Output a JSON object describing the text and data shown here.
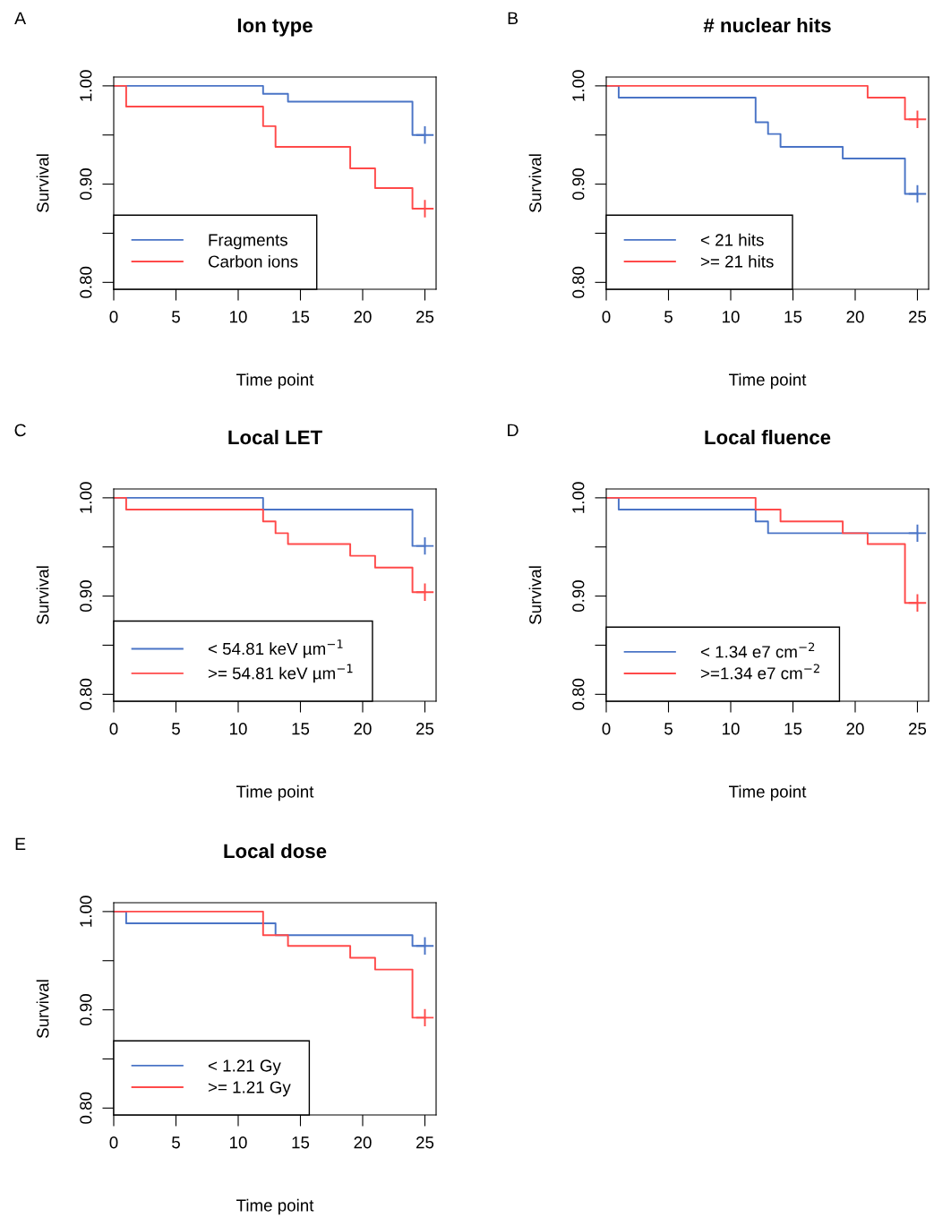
{
  "chart_data": [
    {
      "type": "step",
      "title": "Ion type",
      "xlabel": "Time point",
      "ylabel": "Survival",
      "annotations": [
        "A"
      ],
      "legend": "bottom left",
      "xlim": [
        0,
        25.9
      ],
      "ylim": [
        0.793,
        1.009
      ],
      "xticks": [
        0,
        5,
        10,
        15,
        20,
        25
      ],
      "yticks": [
        {
          "value": 0.8,
          "label": "0.80"
        },
        {
          "value": 0.85,
          "label": null
        },
        {
          "value": 0.9,
          "label": "0.90"
        },
        {
          "value": 0.95,
          "label": null
        },
        {
          "value": 1.0,
          "label": "1.00"
        }
      ],
      "series": [
        {
          "name": "Fragments",
          "color": "#4a74c6",
          "x": [
            0,
            12,
            14,
            24,
            25
          ],
          "values": [
            1.0,
            0.992,
            0.984,
            0.95,
            0.95
          ]
        },
        {
          "name": "Carbon ions",
          "color": "#ff4a4a",
          "x": [
            0,
            1,
            12,
            13,
            19,
            21,
            24,
            25
          ],
          "values": [
            1.0,
            0.979,
            0.959,
            0.938,
            0.916,
            0.896,
            0.875,
            0.875
          ]
        },
        {
          "type": "scatter",
          "marker": "cross",
          "color": "#4a74c6",
          "x": [
            25
          ],
          "values": [
            0.95
          ]
        },
        {
          "type": "scatter",
          "marker": "cross",
          "color": "#ff4a4a",
          "x": [
            25
          ],
          "values": [
            0.875
          ]
        }
      ]
    },
    {
      "type": "step",
      "title": "# nuclear hits",
      "xlabel": "Time point",
      "ylabel": "Survival",
      "annotations": [
        "B"
      ],
      "legend": "bottom left",
      "xlim": [
        0,
        25.9
      ],
      "ylim": [
        0.793,
        1.009
      ],
      "xticks": [
        0,
        5,
        10,
        15,
        20,
        25
      ],
      "yticks": [
        {
          "value": 0.8,
          "label": "0.80"
        },
        {
          "value": 0.85,
          "label": null
        },
        {
          "value": 0.9,
          "label": "0.90"
        },
        {
          "value": 0.95,
          "label": null
        },
        {
          "value": 1.0,
          "label": "1.00"
        }
      ],
      "series": [
        {
          "name": "< 21 hits",
          "color": "#4a74c6",
          "x": [
            0,
            1,
            12,
            13,
            14,
            19,
            24,
            25
          ],
          "values": [
            1.0,
            0.988,
            0.963,
            0.951,
            0.938,
            0.926,
            0.89,
            0.89
          ]
        },
        {
          "name": ">= 21 hits",
          "color": "#ff4a4a",
          "x": [
            0,
            21,
            24,
            25
          ],
          "values": [
            1.0,
            0.988,
            0.966,
            0.966
          ]
        },
        {
          "type": "scatter",
          "marker": "cross",
          "color": "#4a74c6",
          "x": [
            25
          ],
          "values": [
            0.89
          ]
        },
        {
          "type": "scatter",
          "marker": "cross",
          "color": "#ff4a4a",
          "x": [
            25
          ],
          "values": [
            0.966
          ]
        }
      ]
    },
    {
      "type": "step",
      "title": "Local LET",
      "xlabel": "Time point",
      "ylabel": "Survival",
      "annotations": [
        "C"
      ],
      "legend": "bottom left",
      "xlim": [
        0,
        25.9
      ],
      "ylim": [
        0.793,
        1.009
      ],
      "xticks": [
        0,
        5,
        10,
        15,
        20,
        25
      ],
      "yticks": [
        {
          "value": 0.8,
          "label": "0.80"
        },
        {
          "value": 0.85,
          "label": null
        },
        {
          "value": 0.9,
          "label": "0.90"
        },
        {
          "value": 0.95,
          "label": null
        },
        {
          "value": 1.0,
          "label": "1.00"
        }
      ],
      "series": [
        {
          "name": "< 54.81 keV µm$^{−1}$",
          "color": "#4a74c6",
          "x": [
            0,
            12,
            24,
            25
          ],
          "values": [
            1.0,
            0.988,
            0.951,
            0.951
          ]
        },
        {
          "name": ">= 54.81 keV µm$^{−1}$",
          "color": "#ff4a4a",
          "x": [
            0,
            1,
            12,
            13,
            14,
            19,
            21,
            24,
            25
          ],
          "values": [
            1.0,
            0.988,
            0.976,
            0.964,
            0.953,
            0.941,
            0.929,
            0.904,
            0.904
          ]
        },
        {
          "type": "scatter",
          "marker": "cross",
          "color": "#4a74c6",
          "x": [
            25
          ],
          "values": [
            0.951
          ]
        },
        {
          "type": "scatter",
          "marker": "cross",
          "color": "#ff4a4a",
          "x": [
            25
          ],
          "values": [
            0.904
          ]
        }
      ]
    },
    {
      "type": "step",
      "title": "Local fluence",
      "xlabel": "Time point",
      "ylabel": "Survival",
      "annotations": [
        "D"
      ],
      "legend": "bottom left",
      "xlim": [
        0,
        25.9
      ],
      "ylim": [
        0.793,
        1.009
      ],
      "xticks": [
        0,
        5,
        10,
        15,
        20,
        25
      ],
      "yticks": [
        {
          "value": 0.8,
          "label": "0.80"
        },
        {
          "value": 0.85,
          "label": null
        },
        {
          "value": 0.9,
          "label": "0.90"
        },
        {
          "value": 0.95,
          "label": null
        },
        {
          "value": 1.0,
          "label": "1.00"
        }
      ],
      "series": [
        {
          "name": "< 1.34 e7 cm$^{−2}$",
          "color": "#4a74c6",
          "x": [
            0,
            1,
            12,
            13,
            25
          ],
          "values": [
            1.0,
            0.988,
            0.976,
            0.964,
            0.964
          ]
        },
        {
          "name": ">=1.34 e7 cm$^{−2}$",
          "color": "#ff4a4a",
          "x": [
            0,
            12,
            14,
            19,
            21,
            24,
            25
          ],
          "values": [
            1.0,
            0.988,
            0.976,
            0.964,
            0.953,
            0.893,
            0.893
          ]
        },
        {
          "type": "scatter",
          "marker": "cross",
          "color": "#4a74c6",
          "x": [
            25
          ],
          "values": [
            0.964
          ]
        },
        {
          "type": "scatter",
          "marker": "cross",
          "color": "#ff4a4a",
          "x": [
            25
          ],
          "values": [
            0.893
          ]
        }
      ]
    },
    {
      "type": "step",
      "title": "Local dose",
      "xlabel": "Time point",
      "ylabel": "Survival",
      "annotations": [
        "E"
      ],
      "legend": "bottom left",
      "xlim": [
        0,
        25.9
      ],
      "ylim": [
        0.793,
        1.009
      ],
      "xticks": [
        0,
        5,
        10,
        15,
        20,
        25
      ],
      "yticks": [
        {
          "value": 0.8,
          "label": "0.80"
        },
        {
          "value": 0.85,
          "label": null
        },
        {
          "value": 0.9,
          "label": "0.90"
        },
        {
          "value": 0.95,
          "label": null
        },
        {
          "value": 1.0,
          "label": "1.00"
        }
      ],
      "series": [
        {
          "name": "< 1.21 Gy",
          "color": "#4a74c6",
          "x": [
            0,
            1,
            13,
            24,
            25
          ],
          "values": [
            1.0,
            0.988,
            0.976,
            0.965,
            0.965
          ]
        },
        {
          "name": ">= 1.21 Gy",
          "color": "#ff4a4a",
          "x": [
            0,
            12,
            14,
            19,
            21,
            24,
            25
          ],
          "values": [
            1.0,
            0.976,
            0.965,
            0.953,
            0.941,
            0.892,
            0.892
          ]
        },
        {
          "type": "scatter",
          "marker": "cross",
          "color": "#4a74c6",
          "x": [
            25
          ],
          "values": [
            0.965
          ]
        },
        {
          "type": "scatter",
          "marker": "cross",
          "color": "#ff4a4a",
          "x": [
            25
          ],
          "values": [
            0.892
          ]
        }
      ]
    }
  ]
}
